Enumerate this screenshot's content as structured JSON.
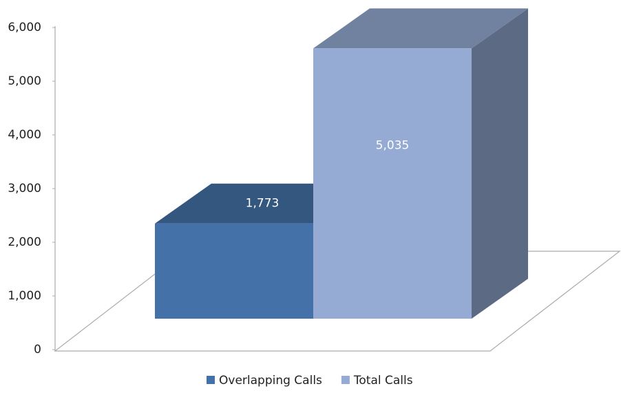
{
  "chart_data": {
    "type": "bar3d",
    "categories": [
      null
    ],
    "series": [
      {
        "name": "Overlapping Calls",
        "color": "#4472a8",
        "values": [
          1773
        ],
        "value_labels": [
          "1,773"
        ]
      },
      {
        "name": "Total Calls",
        "color": "#95abd3",
        "values": [
          5035
        ],
        "value_labels": [
          "5,035"
        ]
      }
    ],
    "ylim": [
      0,
      6000
    ],
    "yticks": [
      {
        "value": 0,
        "label": "0"
      },
      {
        "value": 1000,
        "label": "1,000"
      },
      {
        "value": 2000,
        "label": "2,000"
      },
      {
        "value": 3000,
        "label": "3,000"
      },
      {
        "value": 4000,
        "label": "4,000"
      },
      {
        "value": 5000,
        "label": "5,000"
      },
      {
        "value": 6000,
        "label": "6,000"
      }
    ],
    "legend": "bottom"
  }
}
